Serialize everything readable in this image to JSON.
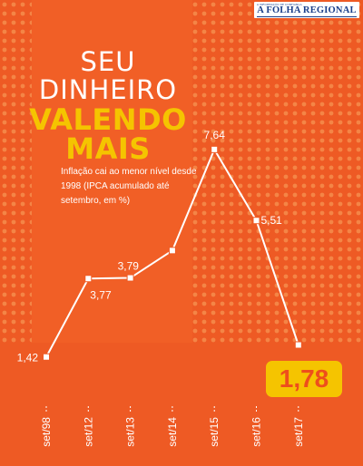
{
  "masthead": {
    "name": "A FOLHA REGIONAL",
    "tagline": "A INFORMAÇÃO DE CONFIANÇA",
    "color": "#1a3e8a"
  },
  "headline": {
    "line1": "SEU",
    "line2": "DINHEIRO",
    "line3": "VALENDO",
    "line4": "MAIS"
  },
  "subtitle": "Inflação cai ao menor nível desde 1998 (IPCA acumulado até setembro, em %)",
  "colors": {
    "background": "#ee5a24",
    "panel": "#f47a3c",
    "accent_yellow": "#f5c400",
    "line": "#ffffff"
  },
  "chart_data": {
    "type": "line",
    "title": "",
    "xlabel": "",
    "ylabel": "",
    "categories": [
      "set/98",
      "set/12",
      "set/13",
      "set/14",
      "set/15",
      "set/16",
      "set/17"
    ],
    "series": [
      {
        "values": [
          1.42,
          3.77,
          3.79,
          4.61,
          7.64,
          5.51,
          1.78
        ]
      }
    ],
    "labels": [
      "1,42",
      "3,77",
      "3,79",
      "",
      "7,64",
      "5,51",
      "1,78"
    ],
    "highlight": "1,78",
    "ylim": [
      0,
      8
    ],
    "grid": false,
    "legend": "none"
  }
}
